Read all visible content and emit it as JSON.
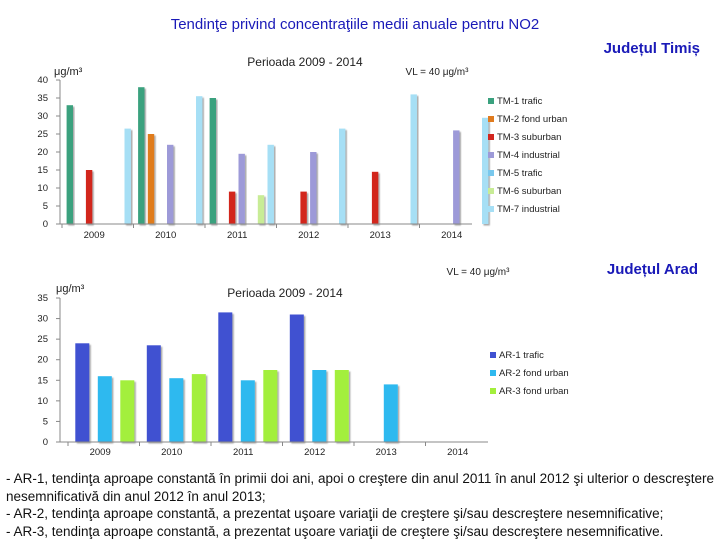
{
  "page": {
    "title": "Tendinţe privind concentraţiile medii anuale pentru NO2",
    "background": "#ffffff",
    "accent": "#0000cc"
  },
  "chart_data": [
    {
      "type": "bar",
      "region": "Județul Timiș",
      "title": "Perioada 2009 - 2014",
      "ylabel": "μg/m³",
      "vl_label": "VL = 40 μg/m³",
      "ylim": [
        0,
        40
      ],
      "yticks": [
        0,
        5,
        10,
        15,
        20,
        25,
        30,
        35,
        40
      ],
      "grid": false,
      "legend": "right",
      "categories": [
        "2009",
        "2010",
        "2011",
        "2012",
        "2013",
        "2014"
      ],
      "series": [
        {
          "name": "TM-1 trafic",
          "color": "#3aa17e",
          "values": [
            33,
            38,
            35,
            null,
            null,
            null
          ]
        },
        {
          "name": "TM-2 fond urban",
          "color": "#e07b1f",
          "values": [
            null,
            25,
            null,
            null,
            null,
            null
          ]
        },
        {
          "name": "TM-3 suburban",
          "color": "#d2261f",
          "values": [
            15,
            null,
            9,
            9,
            14.5,
            null
          ]
        },
        {
          "name": "TM-4 industrial",
          "color": "#9d9ad8",
          "values": [
            null,
            22,
            19.5,
            20,
            null,
            26
          ]
        },
        {
          "name": "TM-5 trafic",
          "color": "#79c8ed",
          "values": [
            null,
            null,
            null,
            null,
            null,
            null
          ]
        },
        {
          "name": "TM-6 suburban",
          "color": "#c8ec96",
          "values": [
            null,
            null,
            8,
            null,
            null,
            null
          ]
        },
        {
          "name": "TM-7 industrial",
          "color": "#a6dff5",
          "values": [
            26.5,
            35.5,
            22,
            26.5,
            36,
            29.5
          ]
        }
      ]
    },
    {
      "type": "bar",
      "region": "Județul Arad",
      "title": "Perioada 2009 - 2014",
      "ylabel": "μg/m³",
      "vl_label": "VL = 40 μg/m³",
      "ylim": [
        0,
        35
      ],
      "yticks": [
        0,
        5,
        10,
        15,
        20,
        25,
        30,
        35
      ],
      "grid": false,
      "legend": "right",
      "categories": [
        "2009",
        "2010",
        "2011",
        "2012",
        "2013",
        "2014"
      ],
      "series": [
        {
          "name": "AR-1 trafic",
          "color": "#3f51d1",
          "values": [
            24,
            23.5,
            31.5,
            31,
            null,
            null
          ]
        },
        {
          "name": "AR-2 fond urban",
          "color": "#2fb9ef",
          "values": [
            16,
            15.5,
            15,
            17.5,
            14,
            null
          ]
        },
        {
          "name": "AR-3 fond urban",
          "color": "#a3ef3c",
          "values": [
            15,
            16.5,
            17.5,
            17.5,
            null,
            null
          ]
        }
      ]
    }
  ],
  "notes": [
    "- AR-1, tendinţa aproape constantă în primii doi ani, apoi o creştere din anul 2011 în anul 2012 şi ulterior o descreştere nesemnificativă din anul 2012 în anul 2013;",
    "- AR-2, tendinţa aproape constantă, a prezentat uşoare variaţii de creştere şi/sau descreştere nesemnificative;",
    "- AR-3, tendinţa aproape constantă, a prezentat uşoare variaţii de creştere şi/sau descreştere nesemnificative."
  ]
}
